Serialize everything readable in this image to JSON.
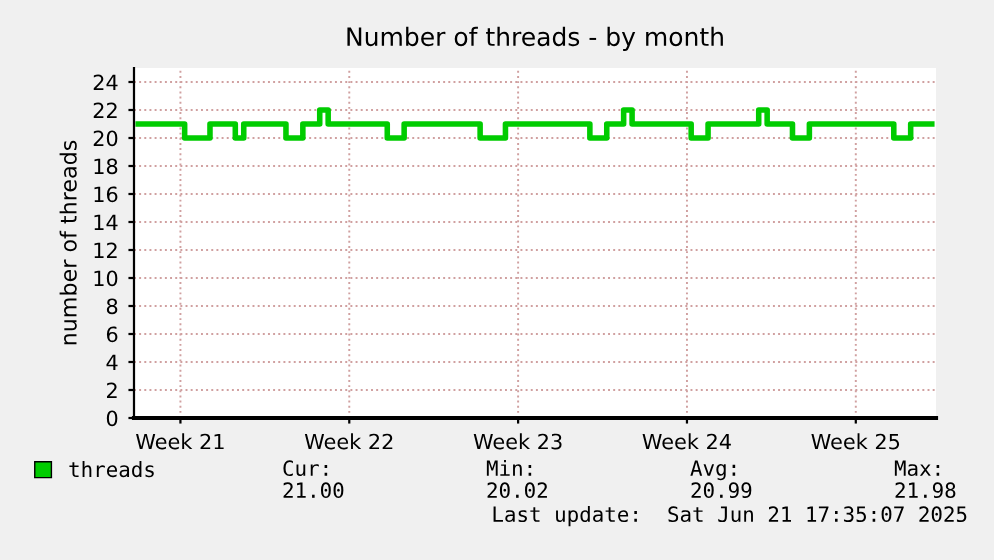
{
  "chart_data": {
    "type": "step",
    "title": "Number of threads - by month",
    "ylabel": "number of threads",
    "categories": [
      null,
      null,
      null,
      null,
      null,
      "Week 21",
      null,
      null,
      null,
      null,
      null,
      null,
      null,
      null,
      null,
      null,
      null,
      null,
      null,
      null,
      null,
      null,
      null,
      null,
      null,
      "Week 22",
      null,
      null,
      null,
      null,
      null,
      null,
      null,
      null,
      null,
      null,
      null,
      null,
      null,
      null,
      null,
      null,
      null,
      null,
      null,
      "Week 23",
      null,
      null,
      null,
      null,
      null,
      null,
      null,
      null,
      null,
      null,
      null,
      null,
      null,
      null,
      null,
      null,
      null,
      null,
      null,
      "Week 24",
      null,
      null,
      null,
      null,
      null,
      null,
      null,
      null,
      null,
      null,
      null,
      null,
      null,
      null,
      null,
      null,
      null,
      null,
      null,
      "Week 25",
      null,
      null,
      null,
      null,
      null,
      null,
      null,
      null,
      null
    ],
    "series": [
      {
        "name": "threads",
        "color": "#00cc00",
        "values": [
          21,
          21,
          21,
          21,
          21,
          21,
          20,
          20,
          20,
          21,
          21,
          21,
          20,
          21,
          21,
          21,
          21,
          21,
          20,
          20,
          21,
          21,
          22,
          21,
          21,
          21,
          21,
          21,
          21,
          21,
          20,
          20,
          21,
          21,
          21,
          21,
          21,
          21,
          21,
          21,
          21,
          20,
          20,
          20,
          21,
          21,
          21,
          21,
          21,
          21,
          21,
          21,
          21,
          21,
          20,
          20,
          21,
          21,
          22,
          21,
          21,
          21,
          21,
          21,
          21,
          21,
          20,
          20,
          21,
          21,
          21,
          21,
          21,
          21,
          22,
          21,
          21,
          21,
          20,
          20,
          21,
          21,
          21,
          21,
          21,
          21,
          21,
          21,
          21,
          21,
          20,
          20,
          21,
          21,
          21
        ]
      }
    ],
    "ylim": [
      0,
      25
    ],
    "yticks": [
      0,
      2,
      4,
      6,
      8,
      10,
      12,
      14,
      16,
      18,
      20,
      22,
      24
    ],
    "grid": true,
    "legend": "bottom left",
    "annotations": [
      "Cur:",
      "Min:",
      "Avg:",
      "Max:",
      "21.00",
      "20.02",
      "20.99",
      "21.98",
      "Last update:  Sat Jun 21 17:35:07 2025"
    ]
  }
}
